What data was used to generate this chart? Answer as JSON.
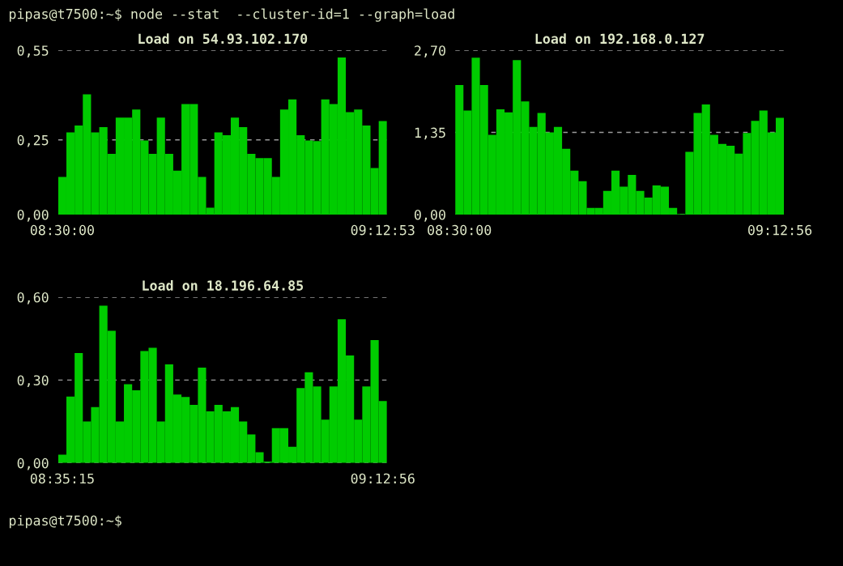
{
  "chart_data": [
    {
      "type": "bar",
      "title": "Load on 54.93.102.170",
      "annotations": [
        "pipas@t7500:~$ node --stat  --cluster-id=1 --graph=load",
        "pipas@t7500:~$"
      ],
      "categories": [
        "08:30:00",
        null,
        null,
        null,
        null,
        null,
        null,
        null,
        null,
        null,
        null,
        null,
        null,
        null,
        null,
        null,
        null,
        null,
        null,
        null,
        null,
        null,
        null,
        null,
        null,
        null,
        null,
        null,
        null,
        null,
        null,
        null,
        null,
        null,
        null,
        null,
        null,
        null,
        null,
        "09:12:53"
      ],
      "values": [
        0.126,
        0.275,
        0.298,
        0.403,
        0.275,
        0.293,
        0.203,
        0.325,
        0.325,
        0.352,
        0.248,
        0.203,
        0.325,
        0.203,
        0.147,
        0.37,
        0.37,
        0.126,
        0.023,
        0.275,
        0.266,
        0.325,
        0.293,
        0.203,
        0.189,
        0.189,
        0.126,
        0.352,
        0.386,
        0.266,
        0.248,
        0.246,
        0.386,
        0.37,
        0.526,
        0.343,
        0.352,
        0.298,
        0.156,
        0.313
      ],
      "color": "#00cc00",
      "ylim": [
        0,
        0.55
      ],
      "yticks": [
        {
          "value": 0,
          "label": "0,00"
        },
        {
          "value": 0.25,
          "label": "0,25"
        },
        {
          "value": 0.55,
          "label": "0,55"
        }
      ],
      "grid": "y"
    },
    {
      "type": "bar",
      "title": "Load on 192.168.0.127",
      "categories": [
        "08:30:00",
        null,
        null,
        null,
        null,
        null,
        null,
        null,
        null,
        null,
        null,
        null,
        null,
        null,
        null,
        null,
        null,
        null,
        null,
        null,
        null,
        null,
        null,
        null,
        null,
        null,
        null,
        null,
        null,
        null,
        null,
        null,
        null,
        null,
        null,
        null,
        null,
        null,
        null,
        "09:12:56"
      ],
      "values": [
        2.13,
        1.71,
        2.58,
        2.13,
        1.31,
        1.73,
        1.68,
        2.54,
        1.86,
        1.44,
        1.67,
        1.35,
        1.44,
        1.08,
        0.72,
        0.55,
        0.11,
        0.11,
        0.39,
        0.72,
        0.46,
        0.65,
        0.39,
        0.28,
        0.48,
        0.46,
        0.11,
        0.01,
        1.03,
        1.67,
        1.81,
        1.31,
        1.16,
        1.13,
        1.0,
        1.34,
        1.54,
        1.71,
        1.35,
        1.59
      ],
      "color": "#00cc00",
      "ylim": [
        0,
        2.7
      ],
      "yticks": [
        {
          "value": 0,
          "label": "0,00"
        },
        {
          "value": 1.35,
          "label": "1,35"
        },
        {
          "value": 2.7,
          "label": "2,70"
        }
      ],
      "grid": "y"
    },
    {
      "type": "bar",
      "title": "Load on 18.196.64.85",
      "categories": [
        "08:35:15",
        null,
        null,
        null,
        null,
        null,
        null,
        null,
        null,
        null,
        null,
        null,
        null,
        null,
        null,
        null,
        null,
        null,
        null,
        null,
        null,
        null,
        null,
        null,
        null,
        null,
        null,
        null,
        null,
        null,
        null,
        null,
        null,
        null,
        null,
        null,
        null,
        null,
        null,
        "09:12:56"
      ],
      "values": [
        0.03,
        0.24,
        0.398,
        0.15,
        0.202,
        0.569,
        0.478,
        0.15,
        0.285,
        0.263,
        0.405,
        0.417,
        0.15,
        0.357,
        0.248,
        0.239,
        0.21,
        0.345,
        0.187,
        0.21,
        0.187,
        0.202,
        0.15,
        0.103,
        0.039,
        0.005,
        0.126,
        0.126,
        0.059,
        0.271,
        0.328,
        0.277,
        0.157,
        0.277,
        0.52,
        0.389,
        0.157,
        0.277,
        0.445,
        0.224
      ],
      "color": "#00cc00",
      "ylim": [
        0,
        0.6
      ],
      "yticks": [
        {
          "value": 0,
          "label": "0,00"
        },
        {
          "value": 0.3,
          "label": "0,30"
        },
        {
          "value": 0.6,
          "label": "0,60"
        }
      ],
      "grid": "y"
    }
  ]
}
